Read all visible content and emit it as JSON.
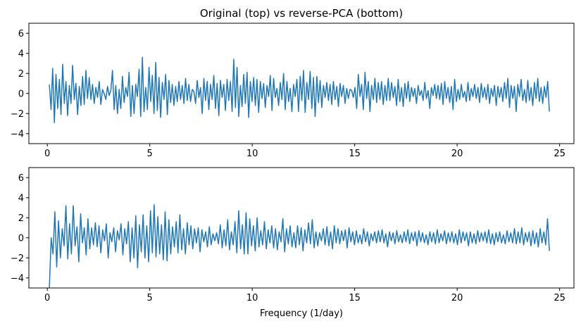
{
  "figure": {
    "title": "Original (top) vs reverse-PCA (bottom)"
  },
  "colors": {
    "line": "#1f77b4",
    "axes": "#000000",
    "background": "#ffffff"
  },
  "chart_data": [
    {
      "type": "line",
      "title": "Original (top) vs reverse-PCA (bottom)",
      "xlabel": "",
      "ylabel": "",
      "xlim": [
        -0.9,
        25.7
      ],
      "ylim": [
        -5,
        7
      ],
      "x_ticks": [
        0,
        5,
        10,
        15,
        20,
        25
      ],
      "y_ticks": [
        -4,
        -2,
        0,
        2,
        4,
        6
      ],
      "grid": false,
      "legend": "none",
      "series": [
        {
          "x_start": 0.1,
          "x_end": 24.5,
          "dx": 0.06,
          "values": [
            0.9,
            -1.6,
            2.5,
            -2.9,
            1.9,
            -1.5,
            1.4,
            -2.1,
            2.9,
            -1.0,
            1.2,
            -2.2,
            0.8,
            -1.0,
            2.8,
            -0.6,
            1.0,
            -2.1,
            0.7,
            -1.2,
            1.7,
            -1.1,
            2.3,
            -0.5,
            1.6,
            -0.6,
            0.9,
            -1.0,
            0.6,
            -0.4,
            1.2,
            -1.1,
            0.4,
            0.0,
            -0.6,
            0.7,
            -0.2,
            0.3,
            2.3,
            -1.6,
            0.8,
            -2.0,
            0.4,
            -1.5,
            1.7,
            -0.9,
            0.6,
            -0.3,
            2.1,
            -2.3,
            0.8,
            -2.0,
            0.9,
            -0.3,
            2.4,
            -2.3,
            3.6,
            -1.8,
            0.6,
            -1.6,
            2.6,
            -0.8,
            1.8,
            -2.0,
            3.1,
            -1.7,
            1.6,
            -2.4,
            1.1,
            -0.6,
            1.9,
            -2.1,
            1.3,
            -0.9,
            0.9,
            -1.2,
            0.7,
            -0.8,
            1.2,
            -0.6,
            0.8,
            -1.0,
            1.5,
            -0.7,
            0.9,
            -0.8,
            0.4,
            0.2,
            -1.0,
            1.3,
            -0.4,
            0.6,
            -2.0,
            1.5,
            -0.7,
            1.2,
            -1.6,
            0.9,
            -0.6,
            1.8,
            -1.5,
            1.0,
            -2.2,
            1.3,
            -0.4,
            0.9,
            -1.7,
            1.4,
            -0.7,
            1.2,
            -1.8,
            3.4,
            -1.4,
            2.6,
            -2.3,
            0.8,
            -1.3,
            1.9,
            -1.0,
            2.1,
            -2.4,
            1.2,
            -0.8,
            1.6,
            -1.2,
            1.4,
            -1.9,
            1.2,
            -0.5,
            1.0,
            -1.4,
            0.8,
            -0.3,
            1.8,
            -1.7,
            1.5,
            -0.4,
            0.5,
            -1.2,
            1.1,
            -0.6,
            2.0,
            -1.6,
            1.2,
            -0.8,
            0.5,
            -1.8,
            0.9,
            -0.3,
            1.4,
            -1.8,
            1.7,
            -0.7,
            2.3,
            -1.9,
            1.1,
            -0.6,
            2.2,
            -1.5,
            1.6,
            -2.3,
            1.7,
            -0.9,
            1.3,
            -1.4,
            0.8,
            -0.4,
            1.1,
            -0.7,
            0.9,
            -1.1,
            1.2,
            -0.6,
            0.7,
            -1.3,
            1.0,
            -0.3,
            0.8,
            -1.0,
            0.5,
            -0.5,
            0.4,
            0.3,
            -0.4,
            0.6,
            -1.5,
            1.9,
            -0.3,
            0.9,
            -1.6,
            2.1,
            -0.5,
            1.2,
            -1.8,
            0.8,
            -0.6,
            1.5,
            -0.9,
            1.1,
            -0.6,
            1.2,
            -1.1,
            0.8,
            -0.7,
            1.5,
            -0.7,
            1.1,
            -0.4,
            0.7,
            -1.2,
            1.4,
            -0.8,
            0.6,
            -1.3,
            1.0,
            -0.5,
            1.2,
            -0.8,
            0.6,
            -0.3,
            0.5,
            -1.0,
            0.8,
            -0.2,
            0.3,
            -0.7,
            1.1,
            -0.5,
            0.3,
            -1.5,
            0.6,
            -0.2,
            0.9,
            -0.5,
            0.8,
            -0.6,
            1.0,
            -1.1,
            1.2,
            -0.5,
            0.6,
            -0.9,
            0.7,
            -1.6,
            1.4,
            -0.8,
            0.4,
            -0.6,
            0.9,
            -0.4,
            0.2,
            -0.8,
            1.1,
            -0.7,
            0.5,
            -0.3,
            0.9,
            -0.5,
            0.6,
            -0.9,
            1.0,
            -0.4,
            0.6,
            -0.6,
            0.9,
            -1.0,
            0.5,
            -0.3,
            0.8,
            -1.2,
            0.7,
            -0.4,
            0.6,
            -0.8,
            1.1,
            -0.5,
            1.5,
            -1.4,
            0.8,
            -0.5,
            0.7,
            -1.8,
            0.9,
            -0.3,
            1.4,
            -0.7,
            0.4,
            -0.9,
            1.3,
            -0.7,
            0.6,
            -1.2,
            1.1,
            -0.5,
            1.5,
            -0.8,
            0.6,
            -1.0,
            0.7,
            -0.4,
            1.2,
            -1.8
          ]
        }
      ]
    },
    {
      "type": "line",
      "title": "",
      "xlabel": "Frequency (1/day)",
      "ylabel": "",
      "xlim": [
        -0.9,
        25.7
      ],
      "ylim": [
        -5,
        7
      ],
      "x_ticks": [
        0,
        5,
        10,
        15,
        20,
        25
      ],
      "y_ticks": [
        -4,
        -2,
        0,
        2,
        4,
        6
      ],
      "grid": false,
      "legend": "none",
      "series": [
        {
          "x_start": 0.1,
          "x_end": 24.5,
          "dx": 0.06,
          "values": [
            -5.0,
            0.0,
            -1.6,
            2.6,
            -2.9,
            1.7,
            -2.0,
            0.9,
            -0.8,
            3.2,
            -2.1,
            1.4,
            -1.6,
            3.2,
            -0.8,
            1.1,
            -2.4,
            2.4,
            -0.5,
            1.0,
            -1.7,
            1.9,
            -1.1,
            1.0,
            -0.7,
            1.5,
            -0.9,
            1.2,
            -1.5,
            0.8,
            -0.3,
            1.4,
            -2.0,
            0.5,
            -0.4,
            1.0,
            -1.4,
            0.7,
            -0.2,
            1.4,
            -1.7,
            0.9,
            -0.6,
            1.6,
            -2.4,
            1.0,
            -2.0,
            2.2,
            -3.0,
            1.3,
            -1.4,
            2.3,
            -2.0,
            1.2,
            -2.4,
            2.7,
            -1.5,
            3.3,
            -1.9,
            2.1,
            -1.6,
            1.3,
            -2.2,
            2.6,
            -2.3,
            1.8,
            -1.6,
            1.1,
            -0.9,
            1.6,
            -1.5,
            2.3,
            -1.2,
            0.9,
            -1.6,
            1.5,
            -0.7,
            1.2,
            -1.1,
            0.9,
            -0.5,
            1.0,
            -1.4,
            0.8,
            -0.4,
            0.6,
            -0.9,
            1.1,
            -0.7,
            0.4,
            -0.3,
            0.5,
            -0.6,
            1.3,
            -1.0,
            0.8,
            -0.8,
            1.8,
            -1.2,
            0.6,
            -0.7,
            1.6,
            -1.5,
            2.7,
            -1.1,
            1.3,
            -1.6,
            2.5,
            -1.6,
            1.9,
            -0.8,
            1.2,
            -1.3,
            2.0,
            -0.9,
            0.7,
            -0.7,
            1.6,
            -1.1,
            0.8,
            -0.5,
            1.2,
            -1.0,
            0.9,
            -1.2,
            0.6,
            -0.4,
            1.9,
            -1.4,
            0.9,
            -0.6,
            1.2,
            -0.9,
            0.5,
            -1.0,
            1.2,
            -0.7,
            1.0,
            -1.3,
            0.8,
            -0.5,
            1.5,
            -0.6,
            1.8,
            -1.0,
            0.6,
            -0.8,
            0.5,
            -0.3,
            0.9,
            -0.7,
            1.1,
            -0.8,
            0.6,
            -1.1,
            1.2,
            -0.5,
            0.9,
            -0.6,
            0.7,
            -0.3,
            0.8,
            -1.0,
            1.0,
            -0.4,
            0.6,
            -0.7,
            0.7,
            -0.5,
            0.3,
            -0.6,
            0.9,
            -0.4,
            0.6,
            -0.8,
            0.4,
            -0.3,
            0.6,
            -0.5,
            0.7,
            -0.4,
            0.8,
            -0.5,
            0.4,
            -0.9,
            0.6,
            -0.3,
            0.5,
            -0.6,
            0.7,
            -0.4,
            0.3,
            -0.5,
            0.6,
            -0.4,
            0.8,
            -0.6,
            0.5,
            -0.3,
            0.6,
            -0.8,
            0.7,
            -0.4,
            0.5,
            -0.5,
            0.3,
            -0.7,
            0.6,
            -0.4,
            0.5,
            -0.6,
            0.8,
            -0.5,
            0.4,
            -0.3,
            0.7,
            -0.6,
            0.5,
            -0.4,
            0.6,
            -0.5,
            0.4,
            -0.7,
            0.8,
            -0.5,
            0.6,
            -0.3,
            0.5,
            -0.8,
            0.6,
            -0.5,
            0.4,
            -0.6,
            0.7,
            -0.4,
            0.5,
            -0.3,
            0.6,
            -0.5,
            0.8,
            -0.6,
            0.4,
            -0.7,
            0.5,
            -0.4,
            0.6,
            -0.5,
            0.3,
            -0.6,
            0.7,
            -0.4,
            0.5,
            -0.5,
            0.9,
            -0.6,
            0.6,
            -0.5,
            1.0,
            -0.7,
            0.5,
            -0.4,
            0.6,
            -0.8,
            0.7,
            -0.6,
            0.5,
            -0.9,
            0.9,
            -0.5,
            0.6,
            -0.7,
            1.9,
            -1.3
          ]
        }
      ]
    }
  ]
}
